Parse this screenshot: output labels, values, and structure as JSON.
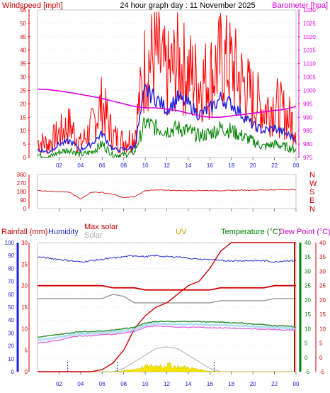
{
  "title": "24 hour graph day : 11 November 2025",
  "colors": {
    "wind": "#ff0000",
    "gust": "#ff0000",
    "avg": "#2020e0",
    "baro": "#e000e0",
    "lowwind": "#008000",
    "dir": "#dd2222",
    "rain": "#cc0000",
    "hum": "#2030d0",
    "maxsolar": "#aaaaaa",
    "uv": "#c8a000",
    "temp": "#2a8a2a",
    "dew": "#e060e0",
    "axisleft": "#2020e0",
    "axisright_temp": "#008000",
    "axisright_dew": "#cc0000"
  },
  "chart_data": [
    {
      "type": "line",
      "name": "wind-baro",
      "left_axis_label": "Windspeed [mph]",
      "right_axis_label": "Barometer [hpa]",
      "x_ticks": [
        "02",
        "04",
        "06",
        "08",
        "10",
        "12",
        "14",
        "16",
        "18",
        "20",
        "22",
        "00"
      ],
      "ylim_left": [
        0,
        55
      ],
      "yticks_left": [
        0,
        5,
        10,
        15,
        20,
        25,
        30,
        35,
        40,
        45,
        50,
        55
      ],
      "ylim_right": [
        975,
        1030
      ],
      "yticks_right": [
        975,
        980,
        985,
        990,
        995,
        1000,
        1005,
        1010,
        1015,
        1020,
        1025,
        1030
      ],
      "hours": [
        0,
        1,
        2,
        3,
        4,
        5,
        6,
        7,
        8,
        9,
        10,
        11,
        12,
        13,
        14,
        15,
        16,
        17,
        18,
        19,
        20,
        21,
        22,
        23,
        24
      ],
      "gust": [
        6,
        5,
        9,
        12,
        5,
        11,
        20,
        8,
        6,
        8,
        35,
        38,
        30,
        35,
        32,
        28,
        30,
        36,
        34,
        28,
        22,
        18,
        20,
        16,
        12
      ],
      "avg": [
        3,
        2,
        5,
        6,
        3,
        5,
        9,
        3,
        3,
        4,
        25,
        22,
        18,
        22,
        20,
        16,
        18,
        22,
        20,
        16,
        12,
        10,
        11,
        9,
        7
      ],
      "low": [
        1,
        0,
        2,
        3,
        1,
        2,
        5,
        1,
        1,
        2,
        13,
        11,
        10,
        11,
        10,
        8,
        9,
        11,
        10,
        8,
        6,
        4,
        5,
        4,
        3
      ],
      "baro": [
        1000.5,
        1000.3,
        999.8,
        999.2,
        998.5,
        997.8,
        997,
        996,
        995,
        994,
        993.5,
        993.5,
        993,
        992.5,
        991.5,
        990.5,
        990,
        990,
        990.5,
        991,
        991.5,
        992,
        992.5,
        993,
        994
      ]
    },
    {
      "type": "line",
      "name": "wind-direction",
      "yticks_left": [
        0,
        90,
        180,
        270,
        360
      ],
      "ylim": [
        0,
        360
      ],
      "right_labels": [
        "N",
        "W",
        "S",
        "E",
        "N"
      ],
      "x_ticks": [
        "02",
        "04",
        "06",
        "08",
        "10",
        "12",
        "14",
        "16",
        "18",
        "20",
        "22",
        "00"
      ],
      "hours": [
        0,
        1,
        2,
        3,
        4,
        5,
        6,
        7,
        8,
        9,
        10,
        11,
        12,
        13,
        14,
        15,
        16,
        17,
        18,
        19,
        20,
        21,
        22,
        23,
        24
      ],
      "direction": [
        190,
        185,
        180,
        170,
        100,
        175,
        170,
        150,
        115,
        125,
        190,
        195,
        195,
        190,
        190,
        192,
        190,
        190,
        192,
        195,
        195,
        197,
        198,
        200,
        200
      ]
    },
    {
      "type": "line",
      "name": "rain-hum-solar-temp",
      "legend": [
        "Rainfall (mm)",
        "Humidity",
        "Max solar",
        "Solar",
        "UV",
        "Temperature (°C)",
        "Dew Point (°C)"
      ],
      "x_ticks": [
        "02",
        "04",
        "06",
        "08",
        "10",
        "12",
        "14",
        "16",
        "18",
        "20",
        "22",
        "00"
      ],
      "humidity_ticks": [
        0,
        10,
        20,
        30,
        40,
        50,
        60,
        70,
        80,
        90,
        100
      ],
      "rain_ticks": [
        0,
        5,
        10,
        15,
        20,
        25,
        30
      ],
      "temp_ticks_right": [
        -5,
        0,
        5,
        10,
        15,
        20,
        25,
        30,
        35,
        40
      ],
      "dew_ticks_right": [
        -5,
        0,
        5,
        10,
        15,
        20,
        25,
        30,
        35,
        40
      ],
      "hours": [
        0,
        1,
        2,
        3,
        4,
        5,
        6,
        7,
        8,
        9,
        10,
        11,
        12,
        13,
        14,
        15,
        16,
        17,
        18,
        19,
        20,
        21,
        22,
        23,
        24
      ],
      "humidity": [
        89,
        88,
        87,
        86,
        85,
        86,
        87,
        88,
        89,
        90,
        89,
        90,
        89,
        89,
        88,
        87,
        87,
        86,
        86,
        86,
        86,
        86,
        85,
        86,
        86
      ],
      "rain_mm": [
        0,
        0,
        0,
        0,
        0,
        0,
        0.5,
        2,
        5,
        10,
        13,
        15,
        16,
        18,
        20,
        21,
        24,
        28,
        30,
        30,
        30,
        30,
        30,
        30,
        30
      ],
      "rain_rate_max": [
        20,
        20,
        20,
        20,
        20,
        20,
        20,
        19.5,
        19.5,
        19.5,
        19,
        19,
        19,
        19,
        19,
        19,
        19,
        19.5,
        19.5,
        19.5,
        19.5,
        19.5,
        20,
        20,
        20
      ],
      "solar_ref": [
        17,
        17,
        17,
        17,
        17,
        17,
        17,
        18,
        17.5,
        16,
        16,
        16,
        16,
        16,
        16,
        16,
        16,
        16.5,
        16.5,
        16.5,
        16.5,
        16.5,
        17,
        17,
        17
      ],
      "temperature": [
        7,
        7.5,
        8,
        8.5,
        9,
        9,
        9.2,
        9.5,
        10,
        10.5,
        12,
        12.5,
        12.5,
        12.5,
        12.5,
        12.5,
        12.3,
        12.3,
        12,
        12,
        11.5,
        11.5,
        11,
        11,
        10.5
      ],
      "dewpoint": [
        5,
        5.5,
        6,
        7,
        7.5,
        7.5,
        8,
        8,
        8.5,
        9,
        10.5,
        11,
        10.8,
        10.5,
        10.5,
        10.5,
        10.3,
        10.3,
        10.2,
        10,
        10,
        9.8,
        9.8,
        9.5,
        9.5
      ],
      "max_solar": [
        0,
        0,
        0,
        0,
        0,
        0,
        0,
        0,
        0.2,
        0.6,
        1,
        1.4,
        1.5,
        1.4,
        1,
        0.6,
        0.2,
        0,
        0,
        0,
        0,
        0,
        0,
        0,
        0
      ],
      "solar": [
        0,
        0,
        0,
        0,
        0,
        0,
        0,
        0,
        0.05,
        0.15,
        0.3,
        0.35,
        0.4,
        0.3,
        0.25,
        0.12,
        0.03,
        0,
        0,
        0,
        0,
        0,
        0,
        0,
        0
      ]
    }
  ]
}
